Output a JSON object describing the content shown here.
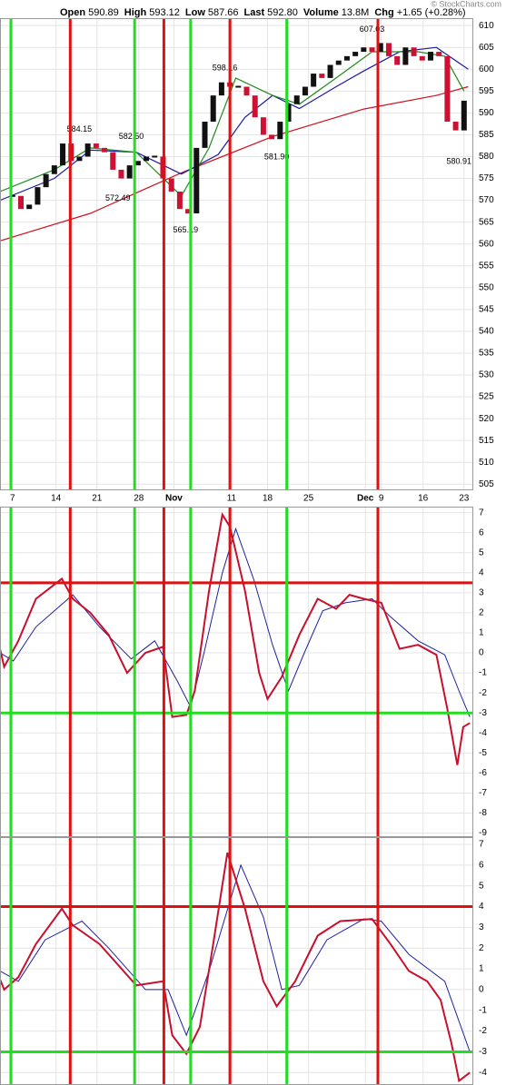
{
  "header": {
    "fields": [
      {
        "label": "Open",
        "value": "590.89"
      },
      {
        "label": "High",
        "value": "593.12"
      },
      {
        "label": "Low",
        "value": "587.66"
      },
      {
        "label": "Last",
        "value": "592.80"
      },
      {
        "label": "Volume",
        "value": "13.8M"
      },
      {
        "label": "Chg",
        "value": "+1.65 (+0.28%)"
      }
    ]
  },
  "watermark": "© StockCharts.com",
  "chart_data": [
    {
      "type": "price",
      "xlim": [
        -1.5,
        55
      ],
      "xticks": [
        {
          "value": 0,
          "label": "7"
        },
        {
          "value": 5.2,
          "label": "14"
        },
        {
          "value": 10.1,
          "label": "21"
        },
        {
          "value": 15.1,
          "label": "28"
        },
        {
          "value": 19.3,
          "label": "Nov"
        },
        {
          "value": 26.2,
          "label": "11"
        },
        {
          "value": 30.5,
          "label": "18"
        },
        {
          "value": 35.4,
          "label": "25"
        },
        {
          "value": 42.2,
          "label": "Dec"
        },
        {
          "value": 44.1,
          "label": "9"
        },
        {
          "value": 49.1,
          "label": "16"
        },
        {
          "value": 54,
          "label": "23"
        }
      ],
      "ylim": [
        503.6,
        611.7
      ],
      "yticks": [
        505,
        510,
        515,
        520,
        525,
        530,
        535,
        540,
        545,
        550,
        555,
        560,
        565,
        570,
        575,
        580,
        585,
        590,
        595,
        600,
        605,
        610
      ],
      "grid": true,
      "vlines": [
        {
          "x": -0.2,
          "color": "#22dd22"
        },
        {
          "x": 6.9,
          "color": "#dd1111"
        },
        {
          "x": 14.6,
          "color": "#22dd22"
        },
        {
          "x": 18.1,
          "color": "#dd1111"
        },
        {
          "x": 21.3,
          "color": "#22dd22"
        },
        {
          "x": 26,
          "color": "#dd1111"
        },
        {
          "x": 32.8,
          "color": "#22dd22"
        },
        {
          "x": 43.7,
          "color": "#dd1111"
        }
      ],
      "price": {
        "up_color": "#111111",
        "down_color": "#cc1133",
        "x": [
          0,
          1,
          2,
          3,
          4,
          5,
          6,
          7,
          8,
          9,
          10,
          11,
          12,
          13,
          14,
          15,
          16,
          17,
          18,
          19,
          20,
          21,
          22,
          23,
          24,
          25,
          26,
          27,
          28,
          29,
          30,
          31,
          32,
          33,
          34,
          35,
          36,
          37,
          38,
          39,
          40,
          41,
          42,
          43,
          44,
          45,
          46,
          47,
          48,
          49,
          50,
          51,
          52,
          53,
          54
        ],
        "values": [
          571,
          568,
          569,
          573,
          576,
          578,
          583,
          579,
          580,
          583,
          582,
          581,
          577,
          575,
          578,
          579,
          580,
          580,
          575,
          572,
          568,
          567,
          582,
          588,
          594,
          597,
          596,
          596,
          594,
          589,
          585,
          584,
          588,
          592,
          594,
          596,
          599,
          598,
          601,
          602,
          603,
          604,
          605,
          604,
          606,
          603,
          601,
          605,
          603,
          602,
          604,
          603,
          588,
          586,
          592.8
        ]
      },
      "series": [
        {
          "color": "#d01020",
          "x": [
            -1.5,
            9.3,
            20.2,
            31.1,
            42,
            50.7,
            54.5
          ],
          "values": [
            560.7,
            567,
            576.3,
            584.6,
            590.9,
            594,
            596
          ]
        },
        {
          "color": "#1a1aa8",
          "x": [
            -1.5,
            5,
            9.3,
            14.8,
            20.2,
            24.6,
            27.8,
            31.1,
            34.3,
            38.7,
            42,
            46.3,
            50.7,
            54.5
          ],
          "values": [
            570,
            575,
            581.5,
            581,
            576,
            580.5,
            589,
            594,
            591,
            596,
            599.6,
            604,
            605,
            600
          ]
        },
        {
          "color": "#1f8a1f",
          "x": [
            -1.5,
            5,
            9.3,
            14.8,
            20.2,
            23.5,
            26.7,
            31.1,
            34.3,
            38.7,
            43,
            48.5,
            51.7,
            54
          ],
          "values": [
            572,
            577,
            582,
            581,
            571,
            582,
            598,
            594,
            592,
            598,
            604,
            604,
            603,
            595
          ]
        }
      ],
      "annotations": [
        {
          "label": "584.15",
          "value": 584.15,
          "x": 8,
          "position": "above"
        },
        {
          "label": "582.50",
          "value": 582.5,
          "x": 14.2,
          "position": "above"
        },
        {
          "label": "572.49",
          "value": 572.49,
          "x": 12.6,
          "position": "below"
        },
        {
          "label": "565.19",
          "value": 565.19,
          "x": 20.7,
          "position": "below"
        },
        {
          "label": "598.16",
          "value": 598.16,
          "x": 25.4,
          "position": "above"
        },
        {
          "label": "581.90",
          "value": 581.9,
          "x": 31.6,
          "position": "below"
        },
        {
          "label": "607.03",
          "value": 607.03,
          "x": 43,
          "position": "above"
        },
        {
          "label": "580.91",
          "value": 580.91,
          "x": 53.4,
          "position": "below"
        }
      ]
    },
    {
      "type": "line",
      "ylim": [
        -9.2,
        7.3
      ],
      "yticks": [
        7,
        6,
        5,
        4,
        3,
        2,
        1,
        0,
        -1,
        -2,
        -3,
        -4,
        -5,
        -6,
        -7,
        -8,
        -9
      ],
      "grid": true,
      "hlines": [
        {
          "value": 3.5,
          "color": "#dd1111"
        },
        {
          "value": -3,
          "color": "#22dd22"
        }
      ],
      "series": [
        {
          "color": "#2020a0",
          "width": 1,
          "x": [
            -1.5,
            0.1,
            2.8,
            7.2,
            10.4,
            14.2,
            17,
            19.7,
            21.3,
            22.9,
            25.1,
            26.7,
            28.9,
            31.1,
            33,
            34.9,
            37.1,
            39.8,
            43,
            45.2,
            48.5,
            51.7,
            53.4,
            54.7
          ],
          "values": [
            0,
            -0.4,
            1.3,
            2.9,
            1.3,
            -0.3,
            0.6,
            -1.4,
            -2.7,
            0,
            4,
            6.2,
            3.6,
            0.4,
            -1.9,
            0,
            2.1,
            2.5,
            2.7,
            1.8,
            0.6,
            -0.1,
            -1.9,
            -3.2
          ]
        },
        {
          "color": "#c8102e",
          "width": 2,
          "x": [
            -1.5,
            -1,
            0.7,
            2.8,
            5.9,
            7.2,
            9.3,
            11.5,
            13.7,
            15.9,
            18,
            19.1,
            20.8,
            21.8,
            23.5,
            25.1,
            26,
            27.8,
            29.5,
            30.5,
            32.2,
            34.3,
            36.5,
            38.7,
            40.3,
            42,
            44.1,
            46.3,
            48.5,
            50.7,
            52,
            53.2,
            53.9,
            54.7
          ],
          "values": [
            0.2,
            -0.7,
            0.6,
            2.7,
            3.7,
            2.7,
            2,
            0.9,
            -1,
            0,
            0.3,
            -3.2,
            -3.1,
            -1.9,
            3.1,
            6.9,
            6.3,
            3.1,
            -1,
            -2.3,
            -1.2,
            0.9,
            2.7,
            2.2,
            2.9,
            2.7,
            2.5,
            0.2,
            0.4,
            -0.1,
            -2.8,
            -5.6,
            -3.7,
            -3.5
          ]
        }
      ]
    },
    {
      "type": "line",
      "ylim": [
        -4.6,
        7.35
      ],
      "yticks": [
        7,
        6,
        5,
        4,
        3,
        2,
        1,
        0,
        -1,
        -2,
        -3,
        -4
      ],
      "grid": true,
      "hlines": [
        {
          "value": 4,
          "color": "#dd1111"
        },
        {
          "value": -3,
          "color": "#22dd22"
        }
      ],
      "series": [
        {
          "color": "#2020a0",
          "width": 1,
          "x": [
            -1.5,
            0.7,
            3.9,
            8.3,
            11.5,
            15.9,
            18.6,
            20.8,
            23.5,
            27.3,
            30,
            32.2,
            34.3,
            37.6,
            42,
            44.1,
            47.4,
            51.7,
            54.7
          ],
          "values": [
            0.9,
            0.4,
            2.4,
            3.3,
            2,
            0,
            0,
            -2.2,
            0.9,
            6,
            3.5,
            0,
            0.2,
            2.4,
            3.4,
            3.3,
            1.7,
            0.4,
            -3
          ]
        },
        {
          "color": "#c8102e",
          "width": 2,
          "x": [
            -1.5,
            -1,
            0.7,
            2.8,
            5.9,
            7.2,
            10.4,
            14.8,
            18,
            19.1,
            20.8,
            22.4,
            24,
            25.7,
            27.8,
            30,
            31.6,
            33.8,
            36.5,
            39.2,
            43,
            45.2,
            47.4,
            49.6,
            51.2,
            52.5,
            53.4,
            54.7
          ],
          "values": [
            0.5,
            0,
            0.6,
            2.2,
            3.9,
            3.1,
            2.2,
            0.2,
            0.4,
            -2.2,
            -3.1,
            -1.8,
            2.2,
            6.6,
            3.9,
            0.4,
            -0.8,
            0.4,
            2.6,
            3.3,
            3.4,
            2.2,
            0.9,
            0.4,
            -0.5,
            -2.6,
            -4.4,
            -4
          ]
        }
      ]
    }
  ]
}
